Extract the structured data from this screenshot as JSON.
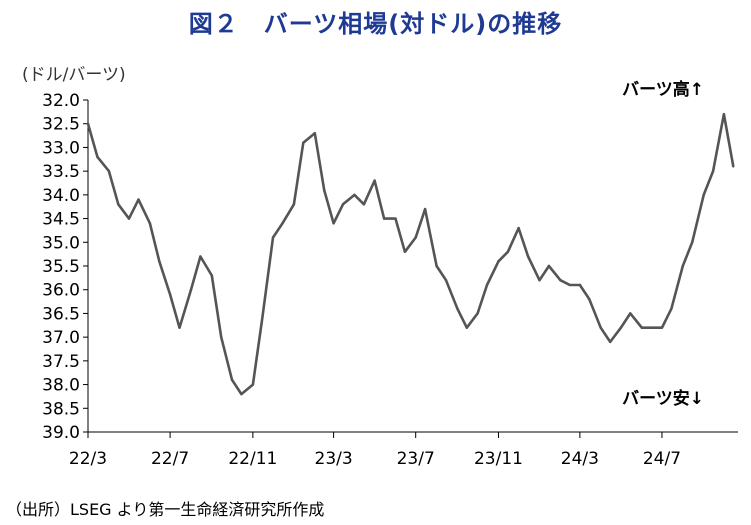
{
  "title": "図２　バーツ相場(対ドル)の推移",
  "unit_label": "(ドル/バーツ)",
  "source": "（出所）LSEG より第一生命経済研究所作成",
  "colors": {
    "title": "#1f3a93",
    "line": "#555555",
    "axis": "#000000"
  },
  "chart_data": {
    "type": "line",
    "title": "図２　バーツ相場(対ドル)の推移",
    "xlabel": "",
    "ylabel": "(ドル/バーツ)",
    "ylim": [
      39.0,
      32.0
    ],
    "y_inverted": true,
    "grid": false,
    "legend": "none",
    "y_ticks": [
      "32.0",
      "32.5",
      "33.0",
      "33.5",
      "34.0",
      "34.5",
      "35.0",
      "35.5",
      "36.0",
      "36.5",
      "37.0",
      "37.5",
      "38.0",
      "38.5",
      "39.0"
    ],
    "x_ticks": [
      "22/3",
      "22/7",
      "22/11",
      "23/3",
      "23/7",
      "23/11",
      "24/3",
      "24/7"
    ],
    "annotations": [
      {
        "text": "バーツ高",
        "arrow": "↑",
        "position": "top-right"
      },
      {
        "text": "バーツ安",
        "arrow": "↓",
        "position": "bottom-right"
      }
    ],
    "series": [
      {
        "x": [
          "2022-03-01",
          "2022-03-15",
          "2022-04-01",
          "2022-04-15",
          "2022-05-01",
          "2022-05-15",
          "2022-06-01",
          "2022-06-15",
          "2022-07-01",
          "2022-07-15",
          "2022-08-01",
          "2022-08-15",
          "2022-09-01",
          "2022-09-15",
          "2022-10-01",
          "2022-10-15",
          "2022-11-01",
          "2022-11-15",
          "2022-12-01",
          "2022-12-15",
          "2023-01-01",
          "2023-01-15",
          "2023-02-01",
          "2023-02-15",
          "2023-03-01",
          "2023-03-15",
          "2023-04-01",
          "2023-04-15",
          "2023-05-01",
          "2023-05-15",
          "2023-06-01",
          "2023-06-15",
          "2023-07-01",
          "2023-07-15",
          "2023-08-01",
          "2023-08-15",
          "2023-09-01",
          "2023-09-15",
          "2023-10-01",
          "2023-10-15",
          "2023-11-01",
          "2023-11-15",
          "2023-12-01",
          "2023-12-15",
          "2024-01-01",
          "2024-01-15",
          "2024-02-01",
          "2024-02-15",
          "2024-03-01",
          "2024-03-15",
          "2024-04-01",
          "2024-04-15",
          "2024-05-01",
          "2024-05-15",
          "2024-06-01",
          "2024-06-15",
          "2024-07-01",
          "2024-07-15",
          "2024-08-01",
          "2024-08-15",
          "2024-09-01",
          "2024-09-15",
          "2024-10-01",
          "2024-10-15"
        ],
        "values": [
          32.5,
          33.2,
          33.5,
          34.2,
          34.5,
          34.1,
          34.6,
          35.4,
          36.1,
          36.8,
          36.0,
          35.3,
          35.7,
          37.0,
          37.9,
          38.2,
          38.0,
          36.6,
          34.9,
          34.6,
          34.2,
          32.9,
          32.7,
          33.9,
          34.6,
          34.2,
          34.0,
          34.2,
          33.7,
          34.5,
          34.5,
          35.2,
          34.9,
          34.3,
          35.5,
          35.8,
          36.4,
          36.8,
          36.5,
          35.9,
          35.4,
          35.2,
          34.7,
          35.3,
          35.8,
          35.5,
          35.8,
          35.9,
          35.9,
          36.2,
          36.8,
          37.1,
          36.8,
          36.5,
          36.8,
          36.8,
          36.8,
          36.4,
          35.5,
          35.0,
          34.0,
          33.5,
          32.3,
          33.4
        ]
      }
    ]
  }
}
